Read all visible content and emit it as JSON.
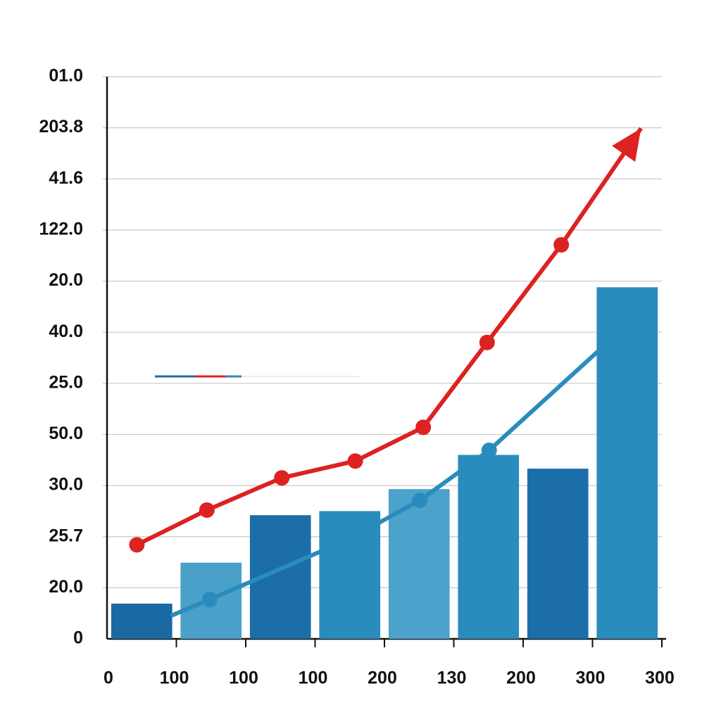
{
  "chart_data": {
    "type": "combo",
    "xlim": [
      0,
      8
    ],
    "xticks": [
      {
        "value": 0,
        "label": "0"
      },
      {
        "value": 1,
        "label": "100"
      },
      {
        "value": 2,
        "label": "100"
      },
      {
        "value": 3,
        "label": "100"
      },
      {
        "value": 4,
        "label": "200"
      },
      {
        "value": 5,
        "label": "130"
      },
      {
        "value": 6,
        "label": "200"
      },
      {
        "value": 7,
        "label": "300"
      },
      {
        "value": 8,
        "label": "300"
      }
    ],
    "ylim": [
      0,
      11
    ],
    "yticks": [
      {
        "value": 0,
        "label": "0"
      },
      {
        "value": 1,
        "label": "20.0"
      },
      {
        "value": 2,
        "label": "25.7"
      },
      {
        "value": 3,
        "label": "30.0"
      },
      {
        "value": 4,
        "label": "50.0"
      },
      {
        "value": 5,
        "label": "25.0"
      },
      {
        "value": 6,
        "label": "40.0"
      },
      {
        "value": 7,
        "label": "20.0"
      },
      {
        "value": 8,
        "label": "122.0"
      },
      {
        "value": 9,
        "label": "41.6"
      },
      {
        "value": 10,
        "label": "203.8"
      },
      {
        "value": 11,
        "label": "01.0"
      }
    ],
    "grid": true,
    "series": [
      {
        "type": "bar",
        "x": [
          0.5,
          1.5,
          2.5,
          3.5,
          4.5,
          5.5,
          6.5,
          7.5
        ],
        "values": [
          0.69,
          1.49,
          2.42,
          2.5,
          2.93,
          3.6,
          3.33,
          6.88
        ],
        "colors": [
          "#1b69a3",
          "#49a0c9",
          "#1b6ea8",
          "#2a8cbd",
          "#4ba2ca",
          "#2a8cbd",
          "#1b6ea8",
          "#2a8cbd"
        ]
      },
      {
        "type": "line",
        "color": "#2a8cbd",
        "x": [
          0.92,
          1.48,
          3.49,
          4.51,
          5.51,
          7.09
        ],
        "values": [
          0.45,
          0.77,
          1.95,
          2.71,
          3.69,
          5.64
        ],
        "markers": [
          false,
          true,
          true,
          true,
          true,
          false
        ]
      },
      {
        "type": "line",
        "color": "#dd2222",
        "x": [
          0.43,
          1.44,
          2.52,
          3.58,
          4.56,
          5.48,
          6.55,
          7.7
        ],
        "values": [
          1.84,
          2.52,
          3.15,
          3.48,
          4.14,
          5.8,
          7.71,
          9.99
        ],
        "markers": [
          true,
          true,
          true,
          true,
          true,
          true,
          true,
          false
        ],
        "arrow": true
      }
    ]
  }
}
